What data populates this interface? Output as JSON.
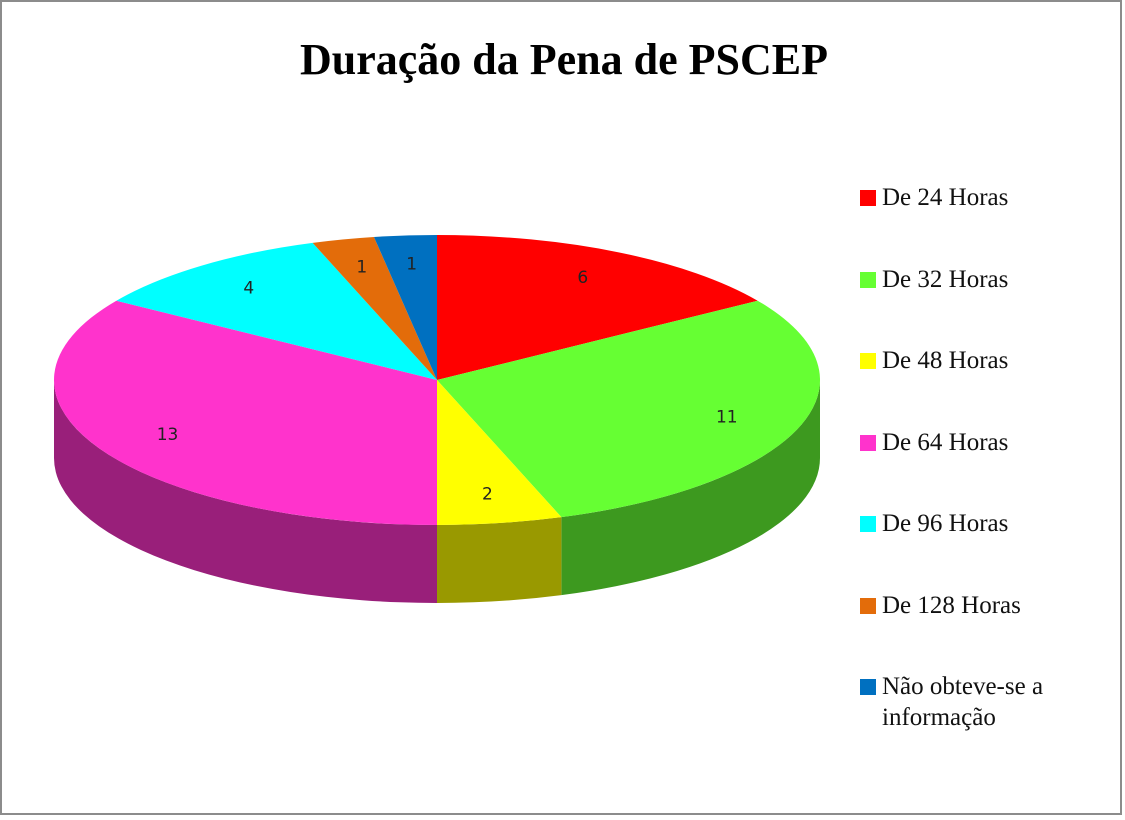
{
  "chart_data": {
    "type": "pie",
    "title": "Duração da Pena de PSCEP",
    "categories": [
      "De 24 Horas",
      "De 32 Horas",
      "De 48 Horas",
      "De 64 Horas",
      "De 96 Horas",
      "De 128 Horas",
      "Não obteve-se a informação"
    ],
    "values": [
      6,
      11,
      2,
      13,
      4,
      1,
      1
    ],
    "colors": [
      "#ff0000",
      "#66ff33",
      "#ffff00",
      "#ff33cc",
      "#00ffff",
      "#e36c0a",
      "#0070c0"
    ],
    "legend": "right"
  }
}
